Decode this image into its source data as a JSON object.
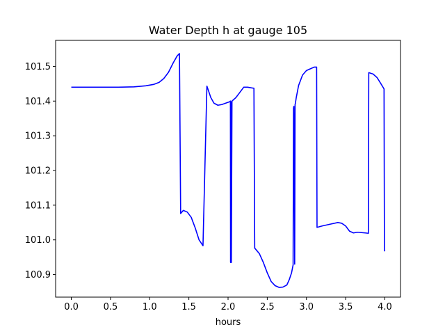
{
  "chart_data": {
    "type": "line",
    "title": "Water Depth h at gauge 105",
    "xlabel": "hours",
    "ylabel": "",
    "xlim": [
      -0.2,
      4.2
    ],
    "ylim": [
      100.835,
      101.575
    ],
    "xticks": [
      0.0,
      0.5,
      1.0,
      1.5,
      2.0,
      2.5,
      3.0,
      3.5,
      4.0
    ],
    "xtick_labels": [
      "0.0",
      "0.5",
      "1.0",
      "1.5",
      "2.0",
      "2.5",
      "3.0",
      "3.5",
      "4.0"
    ],
    "yticks": [
      100.9,
      101.0,
      101.1,
      101.2,
      101.3,
      101.4,
      101.5
    ],
    "ytick_labels": [
      "100.9",
      "101.0",
      "101.1",
      "101.2",
      "101.3",
      "101.4",
      "101.5"
    ],
    "grid": false,
    "legend": "none",
    "series": [
      {
        "color": "#0000ff",
        "x": [
          0.0,
          0.3,
          0.6,
          0.8,
          0.95,
          1.05,
          1.12,
          1.18,
          1.24,
          1.3,
          1.35,
          1.38,
          1.395,
          1.43,
          1.48,
          1.53,
          1.58,
          1.63,
          1.68,
          1.73,
          1.735,
          1.78,
          1.82,
          1.87,
          1.92,
          1.97,
          2.02,
          2.03,
          2.032,
          2.04,
          2.042,
          2.05,
          2.1,
          2.15,
          2.2,
          2.25,
          2.3,
          2.33,
          2.34,
          2.345,
          2.4,
          2.45,
          2.5,
          2.55,
          2.6,
          2.65,
          2.7,
          2.75,
          2.78,
          2.81,
          2.83,
          2.835,
          2.84,
          2.85,
          2.855,
          2.86,
          2.87,
          2.9,
          2.95,
          3.0,
          3.05,
          3.1,
          3.13,
          3.135,
          3.2,
          3.3,
          3.4,
          3.45,
          3.5,
          3.55,
          3.6,
          3.65,
          3.7,
          3.75,
          3.79,
          3.795,
          3.85,
          3.9,
          3.95,
          3.99,
          3.995,
          4.0
        ],
        "y": [
          101.44,
          101.44,
          101.44,
          101.441,
          101.444,
          101.448,
          101.454,
          101.465,
          101.483,
          101.51,
          101.53,
          101.537,
          101.076,
          101.085,
          101.08,
          101.065,
          101.035,
          101.0,
          100.983,
          101.443,
          101.44,
          101.41,
          101.394,
          101.388,
          101.39,
          101.394,
          101.398,
          101.4,
          100.935,
          101.398,
          100.935,
          101.4,
          101.41,
          101.425,
          101.44,
          101.44,
          101.438,
          101.437,
          100.976,
          100.975,
          100.96,
          100.935,
          100.905,
          100.88,
          100.868,
          100.863,
          100.864,
          100.87,
          100.885,
          100.905,
          100.928,
          101.38,
          101.385,
          100.93,
          101.39,
          101.395,
          101.41,
          101.445,
          101.475,
          101.488,
          101.493,
          101.498,
          101.498,
          101.036,
          101.04,
          101.045,
          101.05,
          101.048,
          101.04,
          101.025,
          101.02,
          101.022,
          101.021,
          101.02,
          101.019,
          101.482,
          101.478,
          101.468,
          101.45,
          101.435,
          100.97,
          100.967
        ]
      }
    ]
  }
}
